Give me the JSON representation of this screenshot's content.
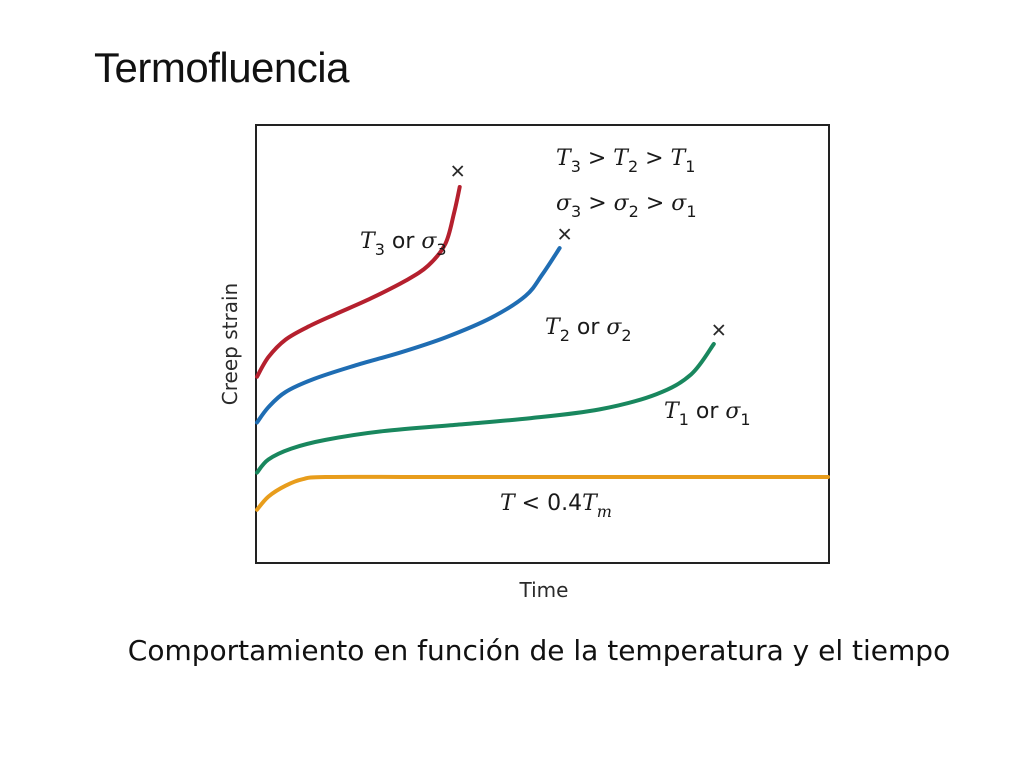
{
  "slide": {
    "title": "Termofluencia",
    "caption": "Comportamiento en función de la temperatura y el tiempo"
  },
  "chart_data": {
    "type": "line",
    "title": "",
    "xlabel": "Time",
    "ylabel": "Creep strain",
    "xlim": [
      0,
      1
    ],
    "ylim": [
      0,
      1
    ],
    "grid": false,
    "axis_ticks": false,
    "annotations": [
      {
        "name": "temperature-order",
        "parts": [
          [
            "T",
            "i"
          ],
          [
            "3",
            "sub"
          ],
          [
            " > ",
            "n"
          ],
          [
            "T",
            "i"
          ],
          [
            "2",
            "sub"
          ],
          [
            " > ",
            "n"
          ],
          [
            "T",
            "i"
          ],
          [
            "1",
            "sub"
          ]
        ]
      },
      {
        "name": "stress-order",
        "parts": [
          [
            "σ",
            "i"
          ],
          [
            "3",
            "sub"
          ],
          [
            " > ",
            "n"
          ],
          [
            "σ",
            "i"
          ],
          [
            "2",
            "sub"
          ],
          [
            " > ",
            "n"
          ],
          [
            "σ",
            "i"
          ],
          [
            "1",
            "sub"
          ]
        ]
      }
    ],
    "series": [
      {
        "name": "T3 or σ3",
        "label_parts": [
          [
            "T",
            "i"
          ],
          [
            "3",
            "sub"
          ],
          [
            " or ",
            "n"
          ],
          [
            "σ",
            "i"
          ],
          [
            "3",
            "sub"
          ]
        ],
        "color": "#b5202e",
        "rupture": true,
        "points": [
          [
            0.0,
            0.425
          ],
          [
            0.02,
            0.47
          ],
          [
            0.05,
            0.51
          ],
          [
            0.09,
            0.54
          ],
          [
            0.14,
            0.57
          ],
          [
            0.2,
            0.605
          ],
          [
            0.26,
            0.645
          ],
          [
            0.3,
            0.68
          ],
          [
            0.33,
            0.73
          ],
          [
            0.345,
            0.8
          ],
          [
            0.355,
            0.86
          ]
        ]
      },
      {
        "name": "T2 or σ2",
        "label_parts": [
          [
            "T",
            "i"
          ],
          [
            "2",
            "sub"
          ],
          [
            " or ",
            "n"
          ],
          [
            "σ",
            "i"
          ],
          [
            "2",
            "sub"
          ]
        ],
        "color": "#1f6db3",
        "rupture": true,
        "points": [
          [
            0.0,
            0.32
          ],
          [
            0.02,
            0.355
          ],
          [
            0.05,
            0.39
          ],
          [
            0.1,
            0.42
          ],
          [
            0.17,
            0.45
          ],
          [
            0.25,
            0.48
          ],
          [
            0.33,
            0.515
          ],
          [
            0.41,
            0.56
          ],
          [
            0.47,
            0.61
          ],
          [
            0.5,
            0.66
          ],
          [
            0.53,
            0.72
          ]
        ]
      },
      {
        "name": "T1 or σ1",
        "label_parts": [
          [
            "T",
            "i"
          ],
          [
            "1",
            "sub"
          ],
          [
            " or ",
            "n"
          ],
          [
            "σ",
            "i"
          ],
          [
            "1",
            "sub"
          ]
        ],
        "color": "#19875e",
        "rupture": true,
        "points": [
          [
            0.0,
            0.205
          ],
          [
            0.02,
            0.235
          ],
          [
            0.06,
            0.26
          ],
          [
            0.12,
            0.28
          ],
          [
            0.22,
            0.3
          ],
          [
            0.35,
            0.315
          ],
          [
            0.48,
            0.33
          ],
          [
            0.6,
            0.35
          ],
          [
            0.7,
            0.385
          ],
          [
            0.76,
            0.43
          ],
          [
            0.8,
            0.5
          ]
        ]
      },
      {
        "name": "T < 0.4Tm",
        "label_parts": [
          [
            "T",
            "i"
          ],
          [
            " < 0.4",
            "n"
          ],
          [
            "T",
            "i"
          ],
          [
            "m",
            "isub"
          ]
        ],
        "color": "#e89d1c",
        "rupture": false,
        "points": [
          [
            0.0,
            0.12
          ],
          [
            0.02,
            0.15
          ],
          [
            0.05,
            0.175
          ],
          [
            0.08,
            0.19
          ],
          [
            0.12,
            0.195
          ],
          [
            0.3,
            0.195
          ],
          [
            0.6,
            0.195
          ],
          [
            1.0,
            0.195
          ]
        ]
      }
    ]
  }
}
